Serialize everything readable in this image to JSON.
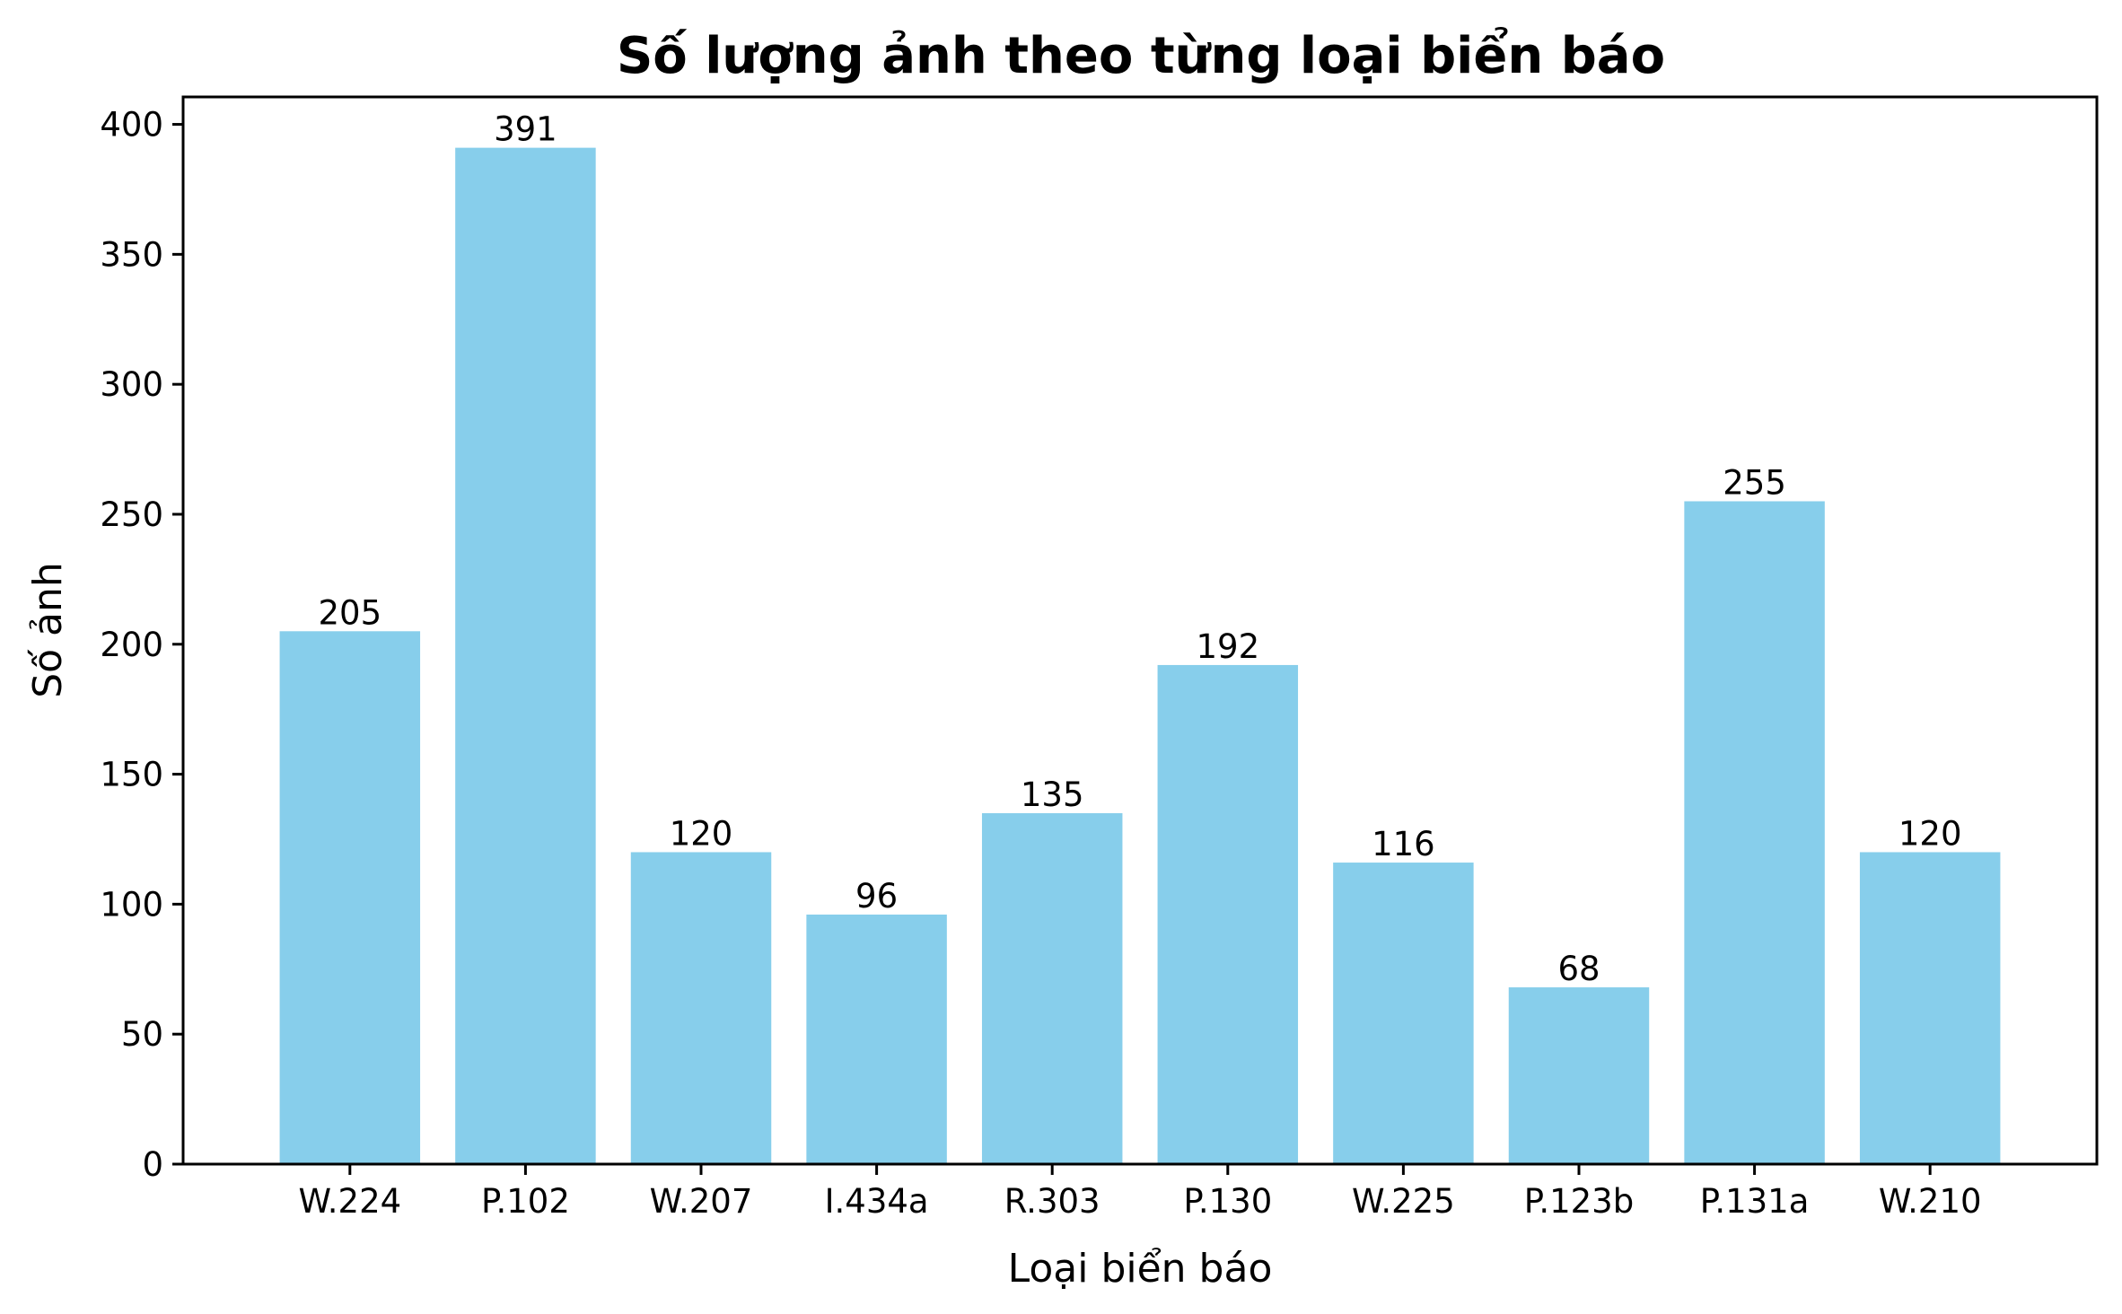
{
  "chart_data": {
    "type": "bar",
    "title": "Số lượng ảnh theo từng loại biển báo",
    "xlabel": "Loại biển báo",
    "ylabel": "Số ảnh",
    "categories": [
      "W.224",
      "P.102",
      "W.207",
      "I.434a",
      "R.303",
      "P.130",
      "W.225",
      "P.123b",
      "P.131a",
      "W.210"
    ],
    "values": [
      205,
      391,
      120,
      96,
      135,
      192,
      116,
      68,
      255,
      120
    ],
    "ylim": [
      0,
      410.55
    ],
    "yticks": [
      0,
      50,
      100,
      150,
      200,
      250,
      300,
      350,
      400
    ],
    "grid": false,
    "bar_color": "#87ceeb"
  }
}
